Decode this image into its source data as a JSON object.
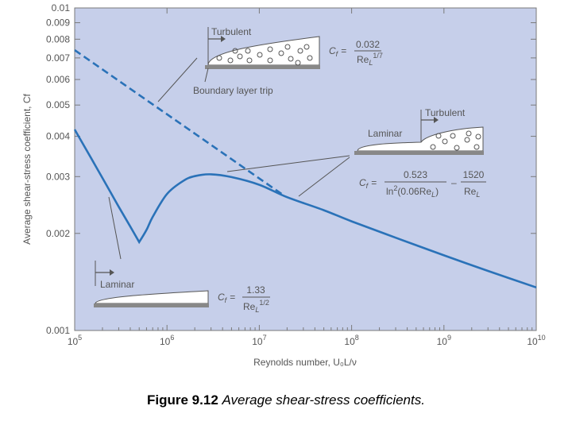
{
  "chart_data": {
    "type": "line",
    "xscale": "log",
    "yscale": "log",
    "xlim": [
      100000,
      10000000000
    ],
    "ylim": [
      0.001,
      0.01
    ],
    "xlabel": "Reynolds number, U₀L/ν",
    "ylabel": "Average shear-stress coefficient, Cf",
    "x_ticks": [
      {
        "value": 100000,
        "base": "10",
        "exp": "5"
      },
      {
        "value": 1000000,
        "base": "10",
        "exp": "6"
      },
      {
        "value": 10000000,
        "base": "10",
        "exp": "7"
      },
      {
        "value": 100000000,
        "base": "10",
        "exp": "8"
      },
      {
        "value": 1000000000,
        "base": "10",
        "exp": "9"
      },
      {
        "value": 10000000000,
        "base": "10",
        "exp": "10"
      }
    ],
    "y_ticks": [
      {
        "value": 0.001,
        "label": "0.001"
      },
      {
        "value": 0.002,
        "label": "0.002"
      },
      {
        "value": 0.003,
        "label": "0.003"
      },
      {
        "value": 0.004,
        "label": "0.004"
      },
      {
        "value": 0.005,
        "label": "0.005"
      },
      {
        "value": 0.006,
        "label": "0.006"
      },
      {
        "value": 0.007,
        "label": "0.007"
      },
      {
        "value": 0.008,
        "label": "0.008"
      },
      {
        "value": 0.009,
        "label": "0.009"
      },
      {
        "value": 0.01,
        "label": "0.01"
      }
    ],
    "series": [
      {
        "style": "solid",
        "x": [
          100000,
          150000,
          200000,
          300000,
          400000,
          500000,
          600000,
          700000,
          1000000,
          1500000,
          2000000,
          3000000,
          5000000,
          10000000,
          20000000,
          50000000,
          100000000,
          300000000,
          1000000000,
          3000000000,
          10000000000
        ],
        "y": [
          0.0042,
          0.00343,
          0.00297,
          0.00242,
          0.0021,
          0.00188,
          0.00205,
          0.00225,
          0.00265,
          0.00291,
          0.00301,
          0.00305,
          0.00299,
          0.00283,
          0.00259,
          0.00236,
          0.00218,
          0.00194,
          0.00171,
          0.00153,
          0.00136
        ]
      },
      {
        "style": "dashed",
        "x": [
          100000,
          17500000
        ],
        "y": [
          0.0074,
          0.00265
        ]
      }
    ],
    "annotations": {
      "turbulent": {
        "label": "Turbulent",
        "trip_label": "Boundary layer trip",
        "formula_lhs": "C",
        "formula_sub": "f",
        "formula_eq": "=",
        "formula_num": "0.032",
        "formula_den_base": "Re",
        "formula_den_sub": "L",
        "formula_den_exp": "1/7"
      },
      "mixed": {
        "label_laminar": "Laminar",
        "label_turbulent": "Turbulent",
        "formula_lhs": "C",
        "formula_sub": "f",
        "formula_eq": "=",
        "num1": "0.523",
        "den1_a": "ln",
        "den1_exp": "2",
        "den1_b": "(0.06Re",
        "den1_sub": "L",
        "den1_c": ")",
        "minus": "–",
        "num2": "1520",
        "den2_base": "Re",
        "den2_sub": "L"
      },
      "laminar": {
        "label": "Laminar",
        "formula_lhs": "C",
        "formula_sub": "f",
        "formula_eq": "=",
        "formula_num": "1.33",
        "formula_den_base": "Re",
        "formula_den_sub": "L",
        "formula_den_exp": "1/2"
      }
    },
    "colors": {
      "plot_bg": "#c6cfea",
      "line": "#2a72b8",
      "axis": "#7a7a7a",
      "text": "#555555"
    }
  },
  "caption": {
    "bold": "Figure 9.12",
    "italic": "Average shear-stress coefficients."
  }
}
